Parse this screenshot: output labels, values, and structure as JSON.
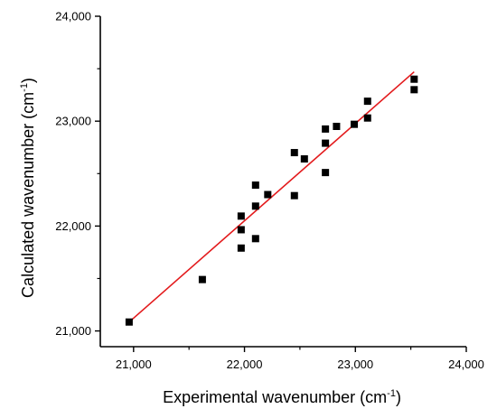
{
  "chart_data": {
    "type": "scatter",
    "title": "",
    "xlabel": "Experimental wavenumber (cm⁻¹)",
    "ylabel": "Calculated wavenumber (cm⁻¹)",
    "xlabel_main": "Experimental wavenumber (cm",
    "xlabel_sup": "-1",
    "xlabel_tail": ")",
    "ylabel_main": "Calculated wavenumber (cm",
    "ylabel_sup": "-1",
    "ylabel_tail": ")",
    "xlim": [
      20700,
      24000
    ],
    "ylim": [
      20850,
      24000
    ],
    "x_ticks": [
      21000,
      22000,
      23000,
      24000
    ],
    "y_ticks": [
      21000,
      22000,
      23000,
      24000
    ],
    "x_tick_labels": [
      "21,000",
      "22,000",
      "23,000",
      "24,000"
    ],
    "y_tick_labels": [
      "21,000",
      "22,000",
      "23,000",
      "24,000"
    ],
    "grid": false,
    "legend": "none",
    "series": [
      {
        "marker": "square",
        "color": "#000000",
        "points": [
          [
            20960,
            21085
          ],
          [
            21620,
            21490
          ],
          [
            21970,
            21790
          ],
          [
            21970,
            21965
          ],
          [
            21970,
            22095
          ],
          [
            22100,
            21880
          ],
          [
            22100,
            22190
          ],
          [
            22100,
            22390
          ],
          [
            22210,
            22300
          ],
          [
            22450,
            22290
          ],
          [
            22450,
            22700
          ],
          [
            22540,
            22640
          ],
          [
            22730,
            22510
          ],
          [
            22730,
            22790
          ],
          [
            22730,
            22925
          ],
          [
            22830,
            22950
          ],
          [
            22990,
            22970
          ],
          [
            23110,
            23030
          ],
          [
            23110,
            23190
          ],
          [
            23530,
            23300
          ],
          [
            23530,
            23400
          ]
        ]
      }
    ],
    "fit_line": {
      "color": "#e31a1c",
      "points": [
        [
          20960,
          21085
        ],
        [
          23530,
          23470
        ]
      ]
    }
  }
}
